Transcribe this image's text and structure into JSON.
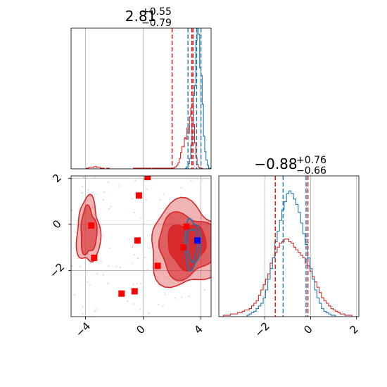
{
  "chart_data": [
    {
      "panel": "marginal-x",
      "type": "histogram",
      "title": {
        "median": "2.81",
        "plus": "+0.55",
        "minus": "−0.79"
      },
      "xlim": [
        -5,
        4.7
      ],
      "grid": true,
      "x_ticks": [
        -4,
        0,
        4
      ],
      "red": {
        "color": "#d62728",
        "edges": [
          -5,
          4.7
        ],
        "counts": [
          0,
          0,
          0,
          0,
          0,
          0,
          0,
          0,
          0,
          0,
          0,
          0,
          1,
          1,
          2,
          2,
          2,
          2,
          3,
          3,
          2,
          2,
          2,
          1,
          1,
          1,
          0,
          0,
          1,
          1,
          0,
          0,
          0,
          0,
          0,
          0,
          0,
          0,
          0,
          0,
          0,
          0,
          0,
          0,
          0,
          0,
          0,
          0,
          0,
          1,
          1,
          1,
          1,
          1,
          1,
          1,
          1,
          1,
          1,
          1,
          1,
          1,
          1,
          0,
          1,
          1,
          1,
          1,
          1,
          1,
          1,
          1,
          1,
          1,
          1,
          1,
          1,
          1,
          1,
          1,
          1,
          2,
          3,
          5,
          8,
          14,
          22,
          30,
          30,
          42,
          40,
          55,
          48,
          70,
          82,
          88,
          60,
          35,
          15,
          6,
          2,
          1,
          1,
          0,
          0,
          0,
          0,
          0,
          0,
          0
        ],
        "quantile_lines": [
          2.0,
          3.36,
          3.45
        ]
      },
      "blue": {
        "color": "#1f77b4",
        "edges": [
          -5,
          4.7
        ],
        "counts": [
          0,
          0,
          0,
          0,
          0,
          0,
          0,
          0,
          0,
          0,
          0,
          0,
          0,
          0,
          0,
          0,
          0,
          0,
          0,
          0,
          0,
          0,
          0,
          0,
          0,
          0,
          0,
          0,
          0,
          0,
          0,
          0,
          0,
          0,
          0,
          0,
          0,
          0,
          0,
          0,
          0,
          0,
          0,
          0,
          0,
          0,
          0,
          0,
          0,
          0,
          0,
          0,
          0,
          0,
          0,
          0,
          0,
          0,
          0,
          0,
          0,
          0,
          0,
          0,
          0,
          0,
          0,
          0,
          0,
          0,
          0,
          0,
          0,
          0,
          0,
          0,
          0,
          0,
          0,
          0,
          0,
          0,
          0,
          0,
          0,
          0,
          0,
          0,
          0,
          0,
          0,
          0,
          0,
          0,
          0,
          0,
          0,
          0,
          0,
          0,
          0,
          0,
          0,
          0,
          0,
          0,
          0,
          0,
          0,
          0
        ],
        "quantile_lines": [
          3.1,
          3.7,
          4.0
        ]
      }
    },
    {
      "panel": "joint",
      "type": "scatter",
      "xlim": [
        -5,
        4.7
      ],
      "ylim": [
        -4,
        2.1
      ],
      "x_ticks": [
        -4,
        0,
        4
      ],
      "y_ticks": [
        -2,
        0,
        2
      ],
      "grid": true,
      "red_squares": [
        {
          "x": 0.3,
          "y": 2.05
        },
        {
          "x": -0.3,
          "y": 1.25
        },
        {
          "x": -3.6,
          "y": -0.05
        },
        {
          "x": -3.4,
          "y": -1.45
        },
        {
          "x": -0.4,
          "y": -0.7
        },
        {
          "x": 1.0,
          "y": -1.8
        },
        {
          "x": 2.8,
          "y": -1.0
        },
        {
          "x": 3.0,
          "y": -0.1
        },
        {
          "x": -1.5,
          "y": -3.0
        },
        {
          "x": -0.6,
          "y": -2.9
        }
      ],
      "blue_squares": [
        {
          "x": 3.75,
          "y": -0.7
        }
      ],
      "red_contours": {
        "color": "#d62728",
        "regions": [
          {
            "center": [
              -3.8,
              -0.3
            ],
            "levels": [
              [
                0.8,
                1.4
              ],
              [
                0.55,
                1.0
              ]
            ]
          },
          {
            "center": [
              3.0,
              -0.9
            ],
            "levels": [
              [
                2.6,
                1.8
              ],
              [
                2.0,
                1.35
              ],
              [
                1.3,
                0.95
              ]
            ]
          }
        ]
      },
      "blue_contours": {
        "color": "#1f77b4",
        "regions": [
          {
            "center": [
              3.4,
              -0.85
            ],
            "levels": [
              [
                0.55,
                1.05
              ],
              [
                0.35,
                0.7
              ]
            ]
          }
        ]
      }
    },
    {
      "panel": "marginal-y",
      "type": "histogram",
      "title": {
        "median": "−0.88",
        "plus": "+0.76",
        "minus": "−0.66"
      },
      "xlim": [
        -4.0,
        2.1
      ],
      "grid": true,
      "x_ticks": [
        -2,
        0,
        2
      ],
      "red": {
        "color": "#d62728",
        "counts": [
          0,
          0,
          1,
          1,
          1,
          2,
          2,
          2,
          3,
          3,
          4,
          5,
          5,
          6,
          8,
          10,
          12,
          16,
          20,
          24,
          28,
          32,
          40,
          44,
          48,
          52,
          55,
          56,
          58,
          58,
          56,
          55,
          52,
          50,
          48,
          46,
          44,
          40,
          38,
          34,
          30,
          26,
          22,
          18,
          14,
          12,
          10,
          8,
          6,
          5,
          4,
          3,
          2,
          2,
          1,
          1,
          1,
          0,
          0,
          0
        ],
        "quantile_lines": [
          -1.54,
          -0.12
        ]
      },
      "blue": {
        "color": "#1f77b4",
        "counts": [
          0,
          0,
          0,
          0,
          0,
          0,
          0,
          0,
          0,
          0,
          0,
          0,
          1,
          2,
          3,
          4,
          6,
          8,
          10,
          14,
          20,
          28,
          36,
          44,
          56,
          64,
          72,
          80,
          86,
          92,
          94,
          92,
          88,
          84,
          78,
          70,
          62,
          54,
          44,
          36,
          28,
          20,
          14,
          10,
          6,
          4,
          3,
          2,
          1,
          1,
          0,
          0,
          0,
          0,
          0,
          0,
          0,
          0,
          0,
          0
        ],
        "quantile_lines": [
          -1.2,
          -0.2
        ]
      }
    }
  ]
}
